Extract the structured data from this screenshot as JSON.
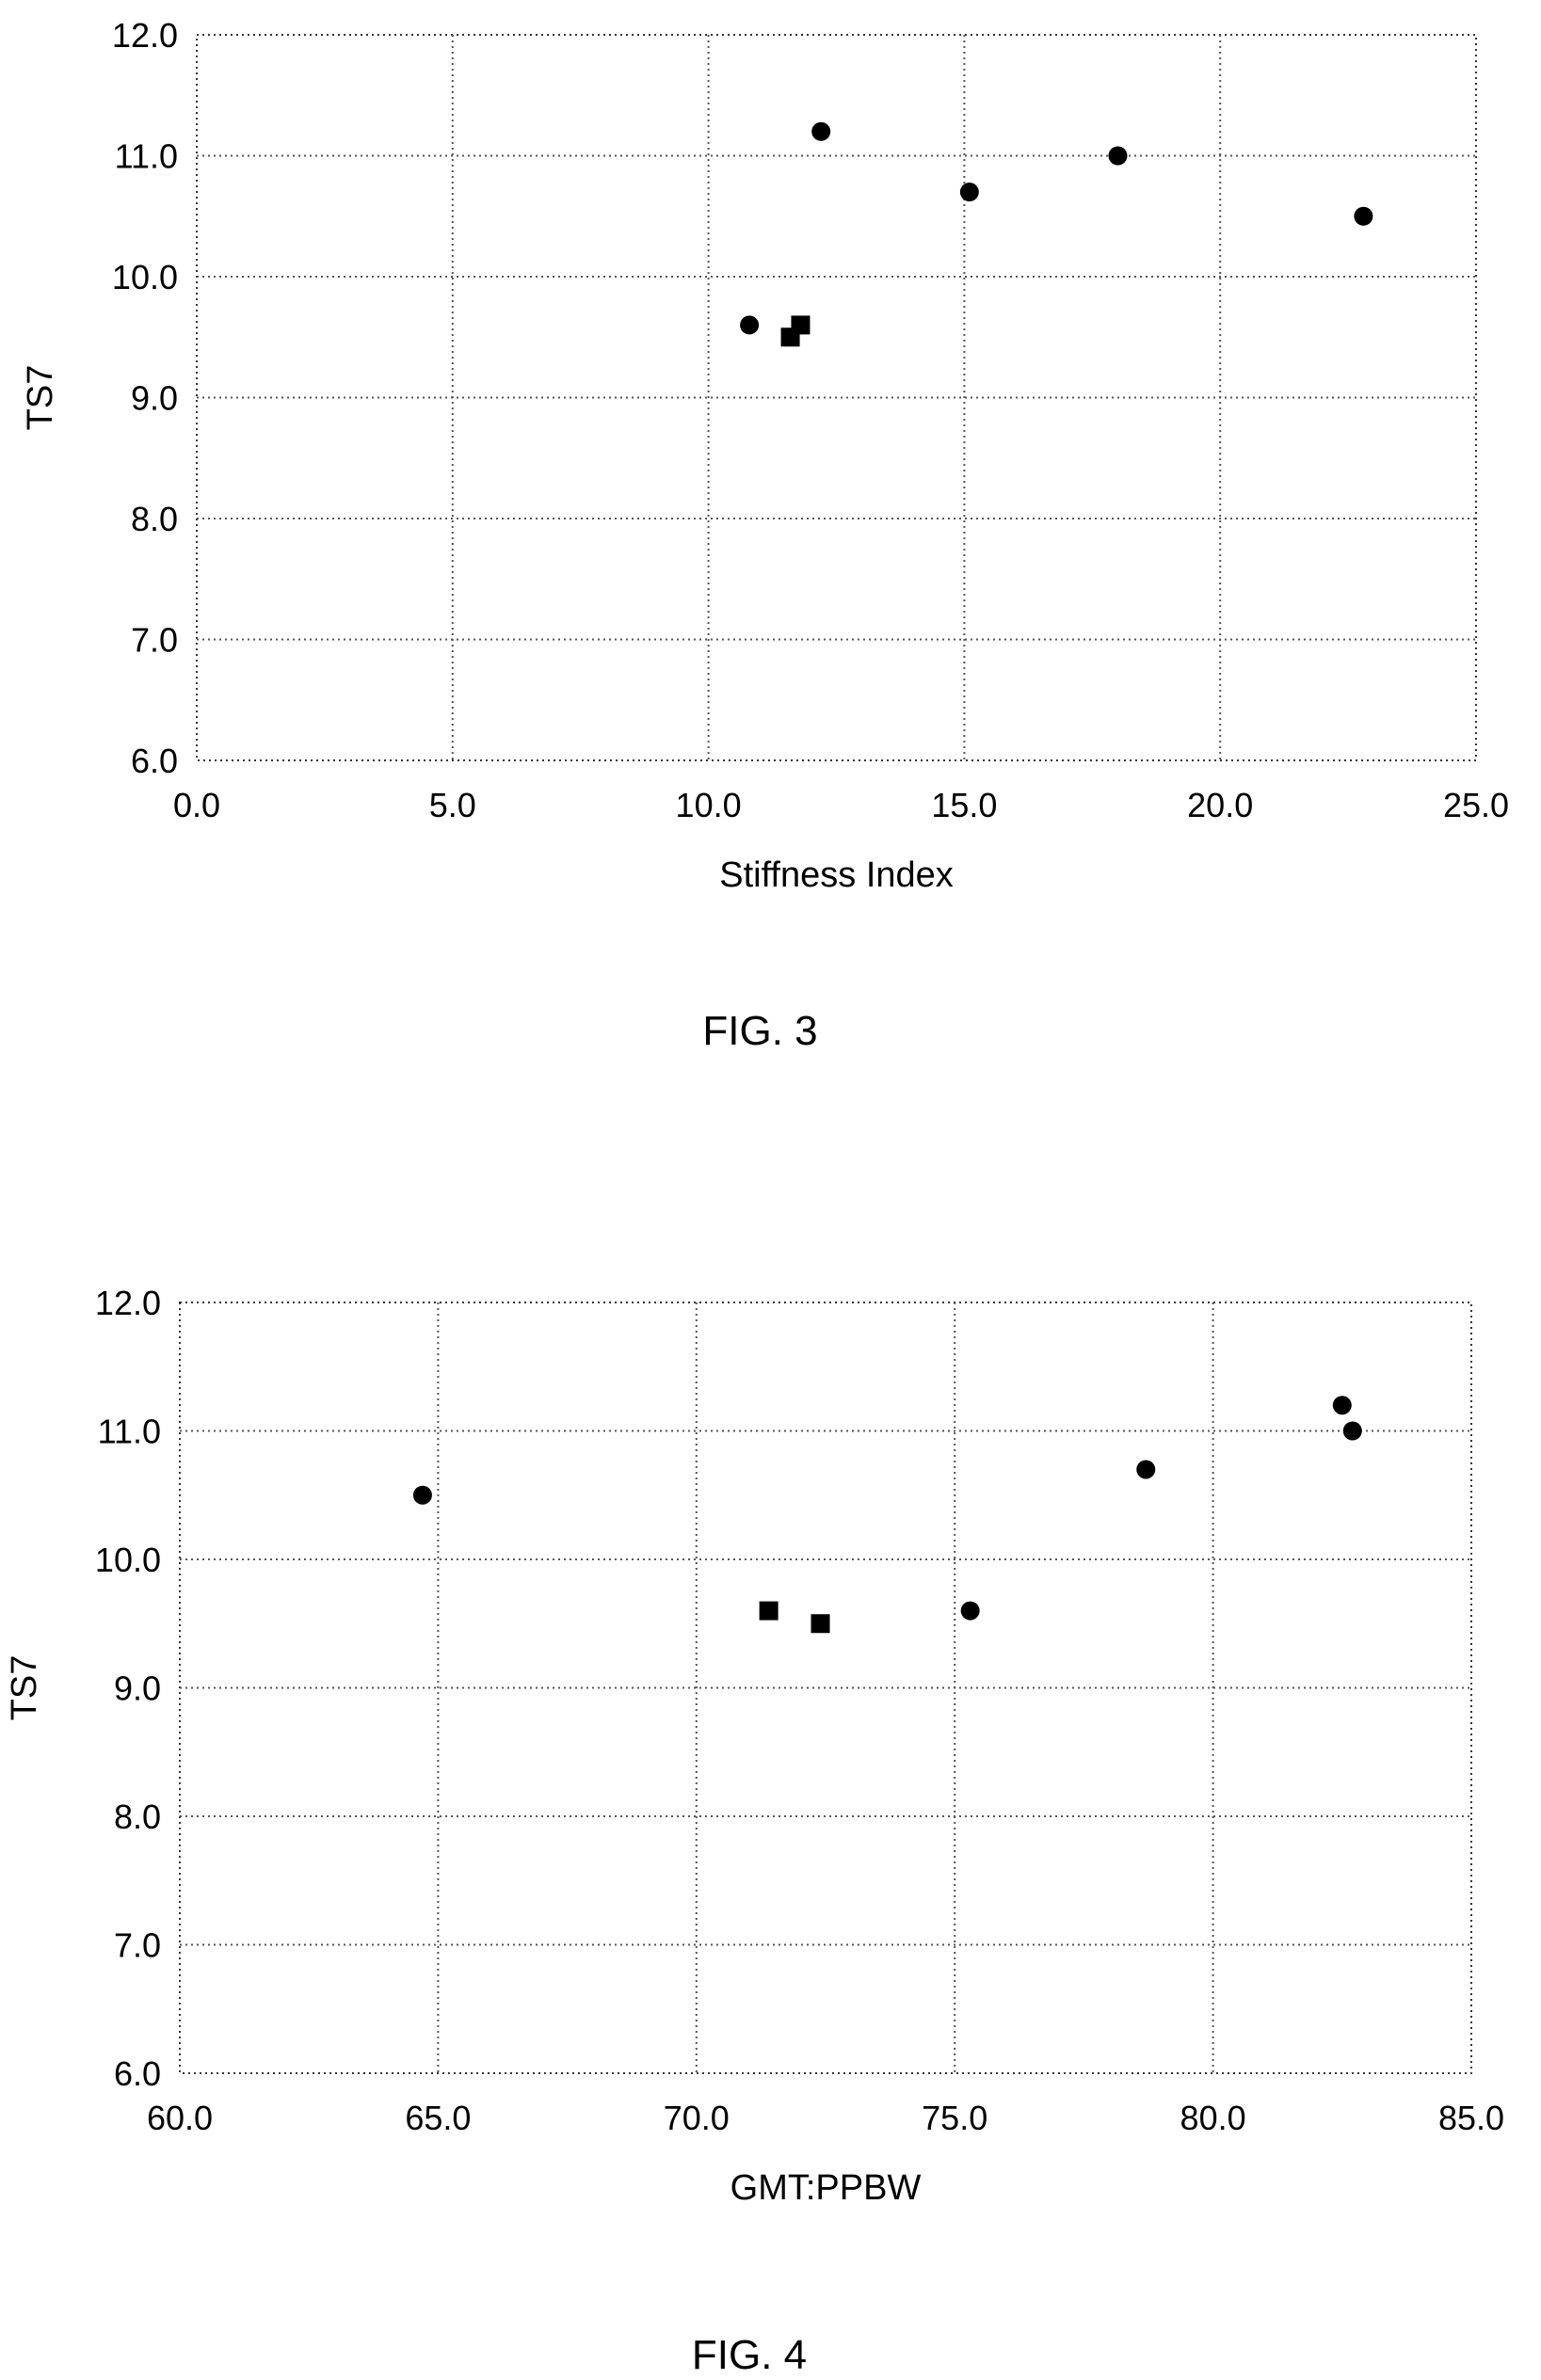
{
  "chart_data": [
    {
      "type": "scatter",
      "caption": "FIG. 3",
      "title": "",
      "xlabel": "Stiffness Index",
      "ylabel": "TS7",
      "xlim": [
        0,
        25
      ],
      "ylim": [
        6,
        12
      ],
      "x_ticks": [
        "0.0",
        "5.0",
        "10.0",
        "15.0",
        "20.0",
        "25.0"
      ],
      "y_ticks": [
        "6.0",
        "7.0",
        "8.0",
        "9.0",
        "10.0",
        "11.0",
        "12.0"
      ],
      "grid": true,
      "legend": "none",
      "series": [
        {
          "marker": "circle",
          "points": [
            {
              "x": 10.8,
              "y": 9.6
            },
            {
              "x": 12.2,
              "y": 11.2
            },
            {
              "x": 15.1,
              "y": 10.7
            },
            {
              "x": 18.0,
              "y": 11.0
            },
            {
              "x": 22.8,
              "y": 10.5
            }
          ]
        },
        {
          "marker": "square",
          "points": [
            {
              "x": 11.6,
              "y": 9.5
            },
            {
              "x": 11.8,
              "y": 9.6
            }
          ]
        }
      ]
    },
    {
      "type": "scatter",
      "caption": "FIG. 4",
      "title": "",
      "xlabel": "GMT:PPBW",
      "ylabel": "TS7",
      "xlim": [
        60,
        85
      ],
      "ylim": [
        6,
        12
      ],
      "x_ticks": [
        "60.0",
        "65.0",
        "70.0",
        "75.0",
        "80.0",
        "85.0"
      ],
      "y_ticks": [
        "6.0",
        "7.0",
        "8.0",
        "9.0",
        "10.0",
        "11.0",
        "12.0"
      ],
      "grid": true,
      "legend": "none",
      "series": [
        {
          "marker": "circle",
          "points": [
            {
              "x": 64.7,
              "y": 10.5
            },
            {
              "x": 75.3,
              "y": 9.6
            },
            {
              "x": 78.7,
              "y": 10.7
            },
            {
              "x": 82.5,
              "y": 11.2
            },
            {
              "x": 82.7,
              "y": 11.0
            }
          ]
        },
        {
          "marker": "square",
          "points": [
            {
              "x": 71.4,
              "y": 9.6
            },
            {
              "x": 72.4,
              "y": 9.5
            }
          ]
        }
      ]
    }
  ]
}
